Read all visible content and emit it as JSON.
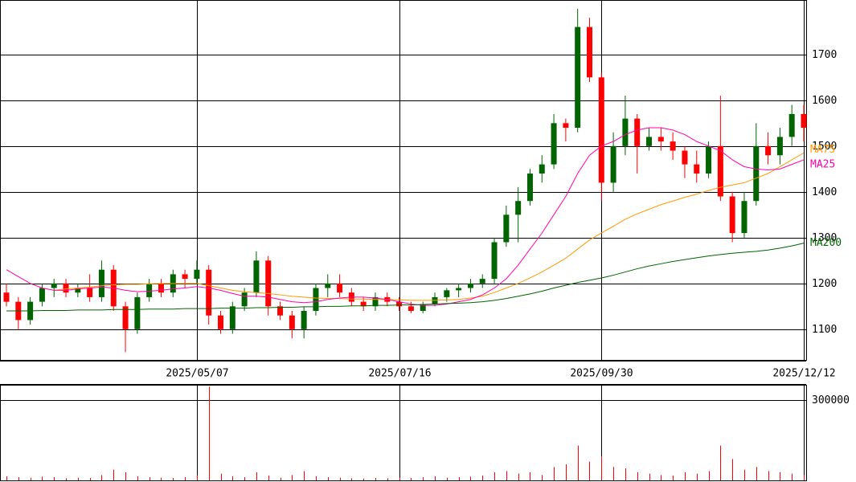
{
  "chart_data": [
    {
      "type": "candlestick",
      "categories": [
        null,
        null,
        null,
        null,
        null,
        null,
        null,
        null,
        null,
        null,
        null,
        null,
        null,
        null,
        null,
        null,
        "2025/05/07",
        null,
        null,
        null,
        null,
        null,
        null,
        null,
        null,
        null,
        null,
        null,
        null,
        null,
        null,
        null,
        null,
        "2025/07/16",
        null,
        null,
        null,
        null,
        null,
        null,
        null,
        null,
        null,
        null,
        null,
        null,
        null,
        null,
        null,
        null,
        "2025/09/30",
        null,
        null,
        null,
        null,
        null,
        null,
        null,
        null,
        null,
        null,
        null,
        null,
        null,
        null,
        null,
        null,
        "2025/12/12"
      ],
      "open": [
        1180,
        1160,
        1120,
        1160,
        1190,
        1200,
        1180,
        1190,
        1170,
        1230,
        1150,
        1100,
        1170,
        1200,
        1180,
        1220,
        1210,
        1230,
        1130,
        1100,
        1150,
        1180,
        1250,
        1150,
        1130,
        1100,
        1140,
        1190,
        1200,
        1180,
        1160,
        1150,
        1170,
        1160,
        1150,
        1140,
        1155,
        1170,
        1185,
        1190,
        1200,
        1210,
        1290,
        1350,
        1380,
        1440,
        1460,
        1550,
        1540,
        1760,
        1650,
        1420,
        1500,
        1560,
        1500,
        1520,
        1510,
        1490,
        1460,
        1440,
        1500,
        1390,
        1310,
        1380,
        1500,
        1480,
        1520,
        1570
      ],
      "high": [
        1200,
        1170,
        1170,
        1200,
        1210,
        1210,
        1200,
        1220,
        1250,
        1240,
        1160,
        1180,
        1210,
        1210,
        1230,
        1230,
        1250,
        1240,
        1140,
        1160,
        1190,
        1270,
        1260,
        1160,
        1140,
        1150,
        1200,
        1220,
        1220,
        1190,
        1170,
        1180,
        1180,
        1170,
        1160,
        1160,
        1180,
        1190,
        1200,
        1210,
        1220,
        1300,
        1370,
        1410,
        1450,
        1480,
        1570,
        1560,
        1800,
        1780,
        1660,
        1530,
        1610,
        1570,
        1540,
        1540,
        1530,
        1500,
        1490,
        1510,
        1610,
        1400,
        1400,
        1550,
        1530,
        1540,
        1590,
        1590
      ],
      "low": [
        1150,
        1100,
        1110,
        1150,
        1170,
        1170,
        1170,
        1160,
        1160,
        1140,
        1050,
        1090,
        1160,
        1170,
        1170,
        1190,
        1200,
        1110,
        1090,
        1090,
        1140,
        1170,
        1130,
        1120,
        1080,
        1080,
        1130,
        1170,
        1170,
        1150,
        1140,
        1140,
        1150,
        1140,
        1135,
        1135,
        1150,
        1160,
        1170,
        1180,
        1190,
        1200,
        1280,
        1290,
        1370,
        1420,
        1450,
        1510,
        1530,
        1640,
        1380,
        1400,
        1480,
        1440,
        1490,
        1490,
        1470,
        1430,
        1420,
        1430,
        1380,
        1290,
        1300,
        1370,
        1460,
        1460,
        1500,
        1510
      ],
      "close": [
        1160,
        1120,
        1160,
        1190,
        1200,
        1180,
        1190,
        1170,
        1230,
        1150,
        1100,
        1170,
        1200,
        1180,
        1220,
        1210,
        1230,
        1130,
        1100,
        1150,
        1180,
        1250,
        1150,
        1130,
        1100,
        1140,
        1190,
        1200,
        1180,
        1160,
        1150,
        1170,
        1160,
        1150,
        1140,
        1155,
        1170,
        1185,
        1190,
        1200,
        1210,
        1290,
        1350,
        1380,
        1440,
        1460,
        1550,
        1540,
        1760,
        1650,
        1420,
        1500,
        1560,
        1500,
        1520,
        1510,
        1490,
        1460,
        1440,
        1500,
        1390,
        1310,
        1380,
        1500,
        1480,
        1520,
        1570,
        1540
      ],
      "up_color": "#006400",
      "down_color": "#ff0000",
      "series": [
        {
          "name": "MA75",
          "color": "#ff9900",
          "values": [
            null,
            null,
            null,
            null,
            1185,
            1188,
            1190,
            1192,
            1195,
            1197,
            1198,
            1198,
            1199,
            1200,
            1200,
            1200,
            1200,
            1195,
            1190,
            1185,
            1182,
            1180,
            1178,
            1175,
            1172,
            1170,
            1168,
            1167,
            1167,
            1166,
            1166,
            1165,
            1165,
            1164,
            1163,
            1163,
            1163,
            1164,
            1165,
            1168,
            1172,
            1180,
            1190,
            1200,
            1212,
            1225,
            1240,
            1255,
            1275,
            1295,
            1310,
            1325,
            1340,
            1352,
            1362,
            1372,
            1380,
            1388,
            1395,
            1403,
            1410,
            1415,
            1420,
            1430,
            1440,
            1455,
            1470,
            1485
          ]
        },
        {
          "name": "MA25",
          "color": "#ff00aa",
          "values": [
            1230,
            1215,
            1200,
            1190,
            1185,
            1185,
            1188,
            1190,
            1192,
            1190,
            1185,
            1182,
            1183,
            1185,
            1188,
            1190,
            1193,
            1190,
            1185,
            1178,
            1172,
            1172,
            1170,
            1165,
            1160,
            1158,
            1160,
            1165,
            1168,
            1170,
            1170,
            1168,
            1165,
            1160,
            1155,
            1152,
            1152,
            1155,
            1160,
            1165,
            1175,
            1190,
            1210,
            1240,
            1275,
            1310,
            1350,
            1390,
            1440,
            1480,
            1500,
            1510,
            1525,
            1535,
            1540,
            1540,
            1535,
            1525,
            1510,
            1500,
            1490,
            1470,
            1455,
            1450,
            1448,
            1450,
            1460,
            1470
          ]
        },
        {
          "name": "MA200",
          "color": "#006400",
          "values": [
            1140,
            1140,
            1140,
            1141,
            1141,
            1141,
            1142,
            1142,
            1142,
            1143,
            1143,
            1143,
            1144,
            1144,
            1144,
            1145,
            1145,
            1145,
            1146,
            1146,
            1146,
            1147,
            1147,
            1148,
            1148,
            1149,
            1149,
            1150,
            1150,
            1151,
            1151,
            1152,
            1152,
            1153,
            1153,
            1154,
            1155,
            1156,
            1157,
            1158,
            1160,
            1163,
            1167,
            1172,
            1177,
            1183,
            1190,
            1196,
            1202,
            1207,
            1212,
            1218,
            1225,
            1232,
            1238,
            1243,
            1248,
            1252,
            1256,
            1260,
            1263,
            1266,
            1268,
            1270,
            1273,
            1277,
            1282,
            1288
          ]
        }
      ],
      "ylim": [
        1033,
        1819
      ],
      "yticks": [
        1100,
        1200,
        1300,
        1400,
        1500,
        1600,
        1700
      ],
      "grid": true
    },
    {
      "type": "bar",
      "color": "#ff0000",
      "values": [
        15000,
        12000,
        10000,
        14000,
        12000,
        8000,
        10000,
        9000,
        20000,
        40000,
        30000,
        15000,
        12000,
        10000,
        9000,
        12000,
        20000,
        350000,
        25000,
        15000,
        12000,
        30000,
        18000,
        10000,
        20000,
        35000,
        15000,
        12000,
        10000,
        8000,
        7000,
        9000,
        8000,
        10000,
        9000,
        12000,
        15000,
        10000,
        12000,
        14000,
        18000,
        30000,
        35000,
        25000,
        30000,
        20000,
        50000,
        60000,
        130000,
        70000,
        90000,
        50000,
        45000,
        30000,
        25000,
        20000,
        18000,
        30000,
        25000,
        35000,
        130000,
        80000,
        40000,
        50000,
        35000,
        30000,
        25000,
        20000
      ],
      "ylim": [
        0,
        354000
      ],
      "yticks": [
        300000
      ],
      "grid": true
    }
  ]
}
